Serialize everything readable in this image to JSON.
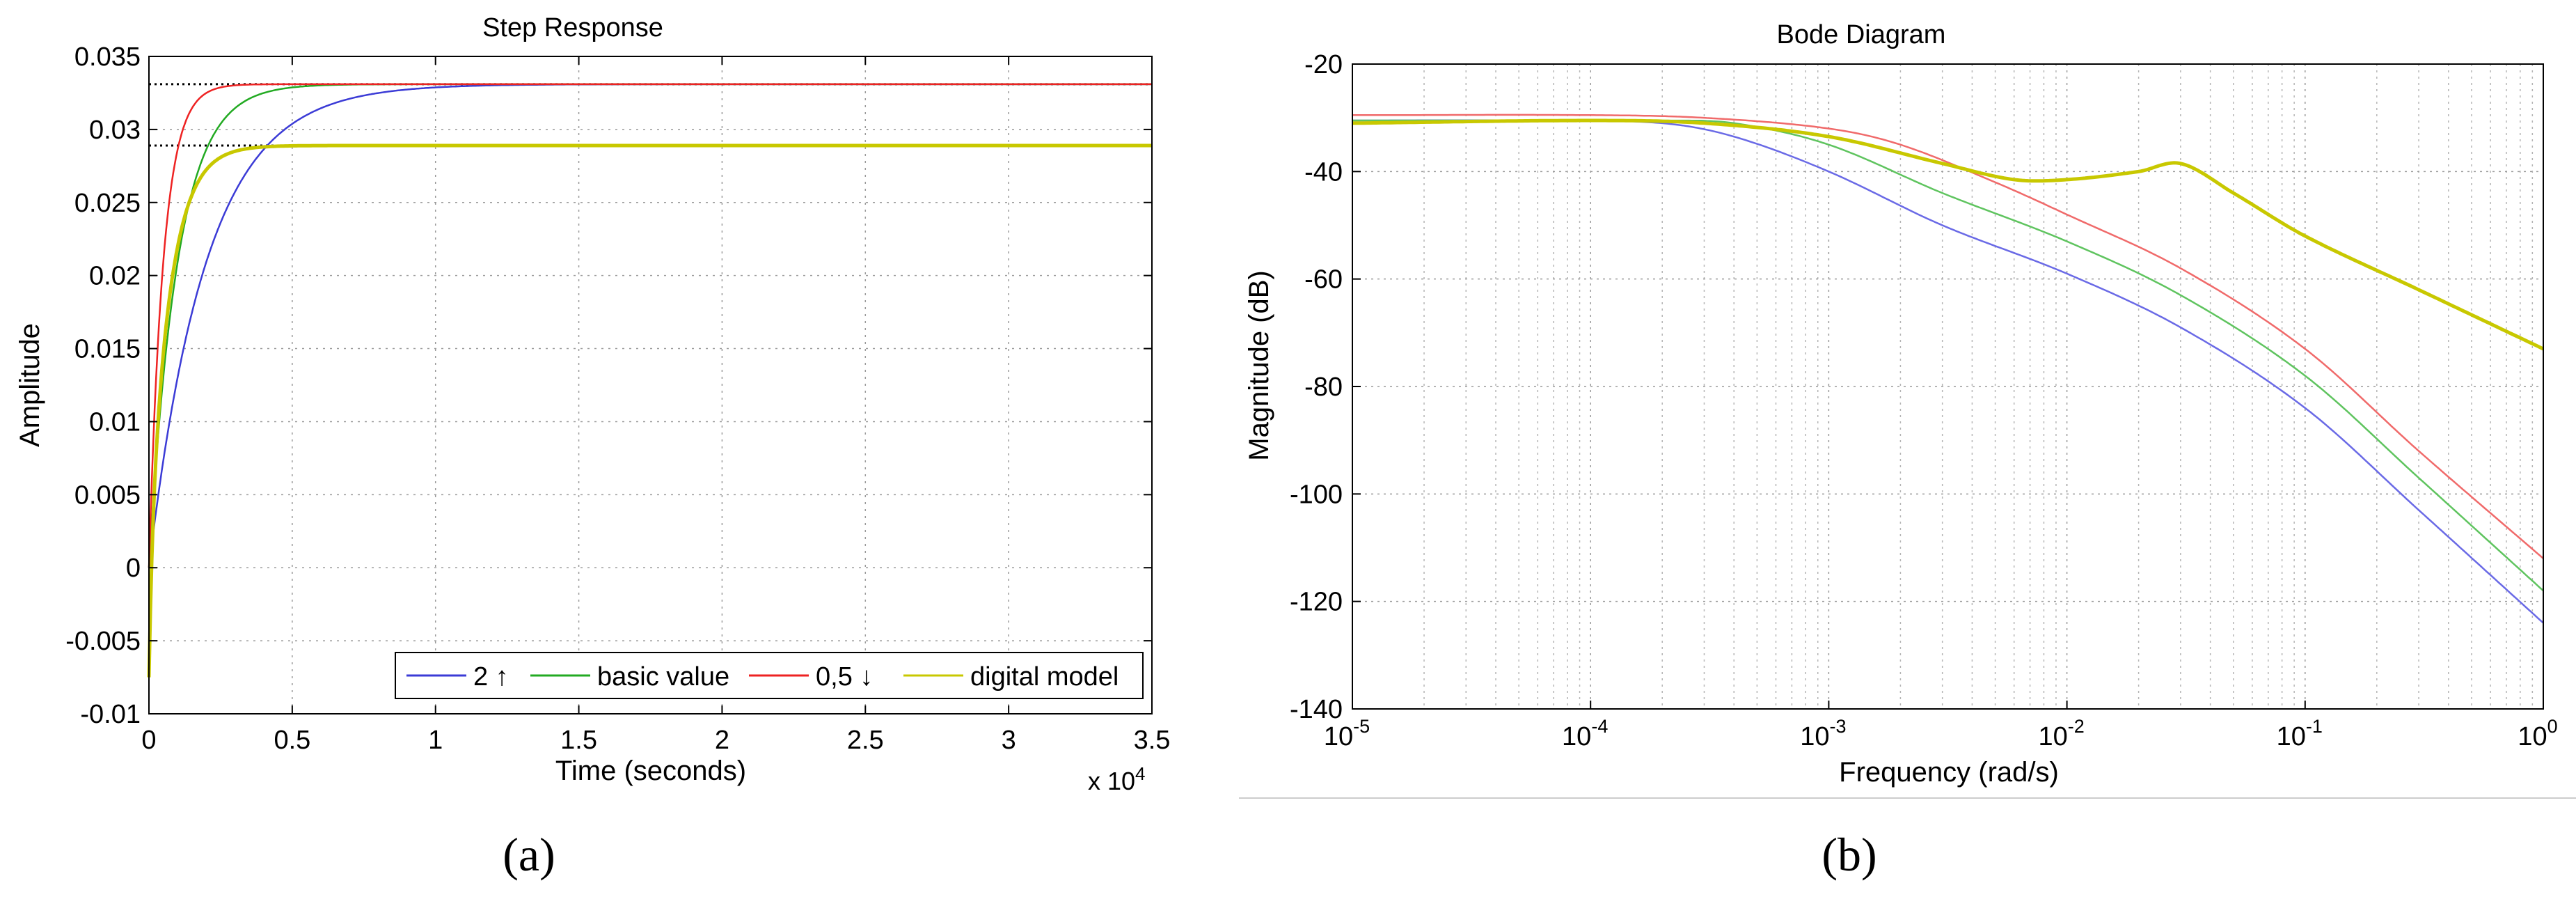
{
  "chart_data": [
    {
      "type": "line",
      "title": "Step Response",
      "xlabel": "Time (seconds)",
      "ylabel": "Amplitude",
      "x_multiplier": "x 10",
      "x_multiplier_exp": "4",
      "xlim": [
        0,
        3.5
      ],
      "ylim": [
        -0.01,
        0.035
      ],
      "xticks": [
        "0",
        "0.5",
        "1",
        "1.5",
        "2",
        "2.5",
        "3",
        "3.5"
      ],
      "yticks": [
        "-0.01",
        "-0.005",
        "0",
        "0.005",
        "0.01",
        "0.015",
        "0.02",
        "0.025",
        "0.03",
        "0.035"
      ],
      "grid": true,
      "legend_position": "bottom-right",
      "reference_levels": [
        0.0331,
        0.0289
      ],
      "series": [
        {
          "name": "2 ↑",
          "color": "#3b3bd6",
          "final": 0.0331,
          "tau": 0.2,
          "undershoot": 0
        },
        {
          "name": "basic value",
          "color": "#22aa22",
          "final": 0.0331,
          "tau": 0.1,
          "undershoot": 0
        },
        {
          "name": "0,5 ↓",
          "color": "#ee2222",
          "final": 0.0331,
          "tau": 0.05,
          "undershoot": 0
        },
        {
          "name": "digital model",
          "color": "#c8c800",
          "final": 0.0289,
          "tau": 0.07,
          "undershoot": -0.0075
        }
      ],
      "caption": "(a)"
    },
    {
      "type": "line",
      "title": "Bode Diagram",
      "xlabel": "Frequency  (rad/s)",
      "ylabel": "Magnitude (dB)",
      "xscale": "log",
      "xlim": [
        1e-05,
        1
      ],
      "ylim": [
        -140,
        -20
      ],
      "xticks": [
        {
          "base": "10",
          "exp": "-5"
        },
        {
          "base": "10",
          "exp": "-4"
        },
        {
          "base": "10",
          "exp": "-3"
        },
        {
          "base": "10",
          "exp": "-2"
        },
        {
          "base": "10",
          "exp": "-1"
        },
        {
          "base": "10",
          "exp": "0"
        }
      ],
      "yticks": [
        "-20",
        "-40",
        "-60",
        "-80",
        "-100",
        "-120",
        "-140"
      ],
      "grid": true,
      "series": [
        {
          "color": "#6a6ae6",
          "x": [
            1e-05,
            6e-05,
            0.0002,
            0.0004,
            0.001,
            0.003,
            0.01,
            0.03,
            0.1,
            0.3,
            1
          ],
          "y": [
            -30.5,
            -30.5,
            -31,
            -33.5,
            -40,
            -50,
            -59,
            -69,
            -84,
            -103,
            -124
          ]
        },
        {
          "color": "#5fc45f",
          "x": [
            1e-05,
            6e-05,
            0.0002,
            0.0004,
            0.001,
            0.003,
            0.01,
            0.03,
            0.1,
            0.3,
            1
          ],
          "y": [
            -30.5,
            -30.5,
            -30.5,
            -31,
            -35,
            -44,
            -53,
            -63,
            -78,
            -97,
            -118
          ]
        },
        {
          "color": "#f06a6a",
          "x": [
            1e-05,
            0.0001,
            0.0003,
            0.001,
            0.002,
            0.005,
            0.01,
            0.03,
            0.1,
            0.3,
            1
          ],
          "y": [
            -29.5,
            -29.5,
            -30,
            -32,
            -35,
            -42,
            -48,
            -58,
            -73,
            -92,
            -112
          ]
        },
        {
          "color": "#c8c800",
          "x": [
            1e-05,
            0.0001,
            0.0003,
            0.001,
            0.003,
            0.006,
            0.01,
            0.02,
            0.03,
            0.05,
            0.1,
            0.3,
            1
          ],
          "y": [
            -31,
            -30.5,
            -31,
            -33.5,
            -38.5,
            -41.5,
            -41.5,
            -40,
            -38.5,
            -44,
            -52,
            -62,
            -73
          ]
        }
      ],
      "caption": "(b)"
    }
  ]
}
